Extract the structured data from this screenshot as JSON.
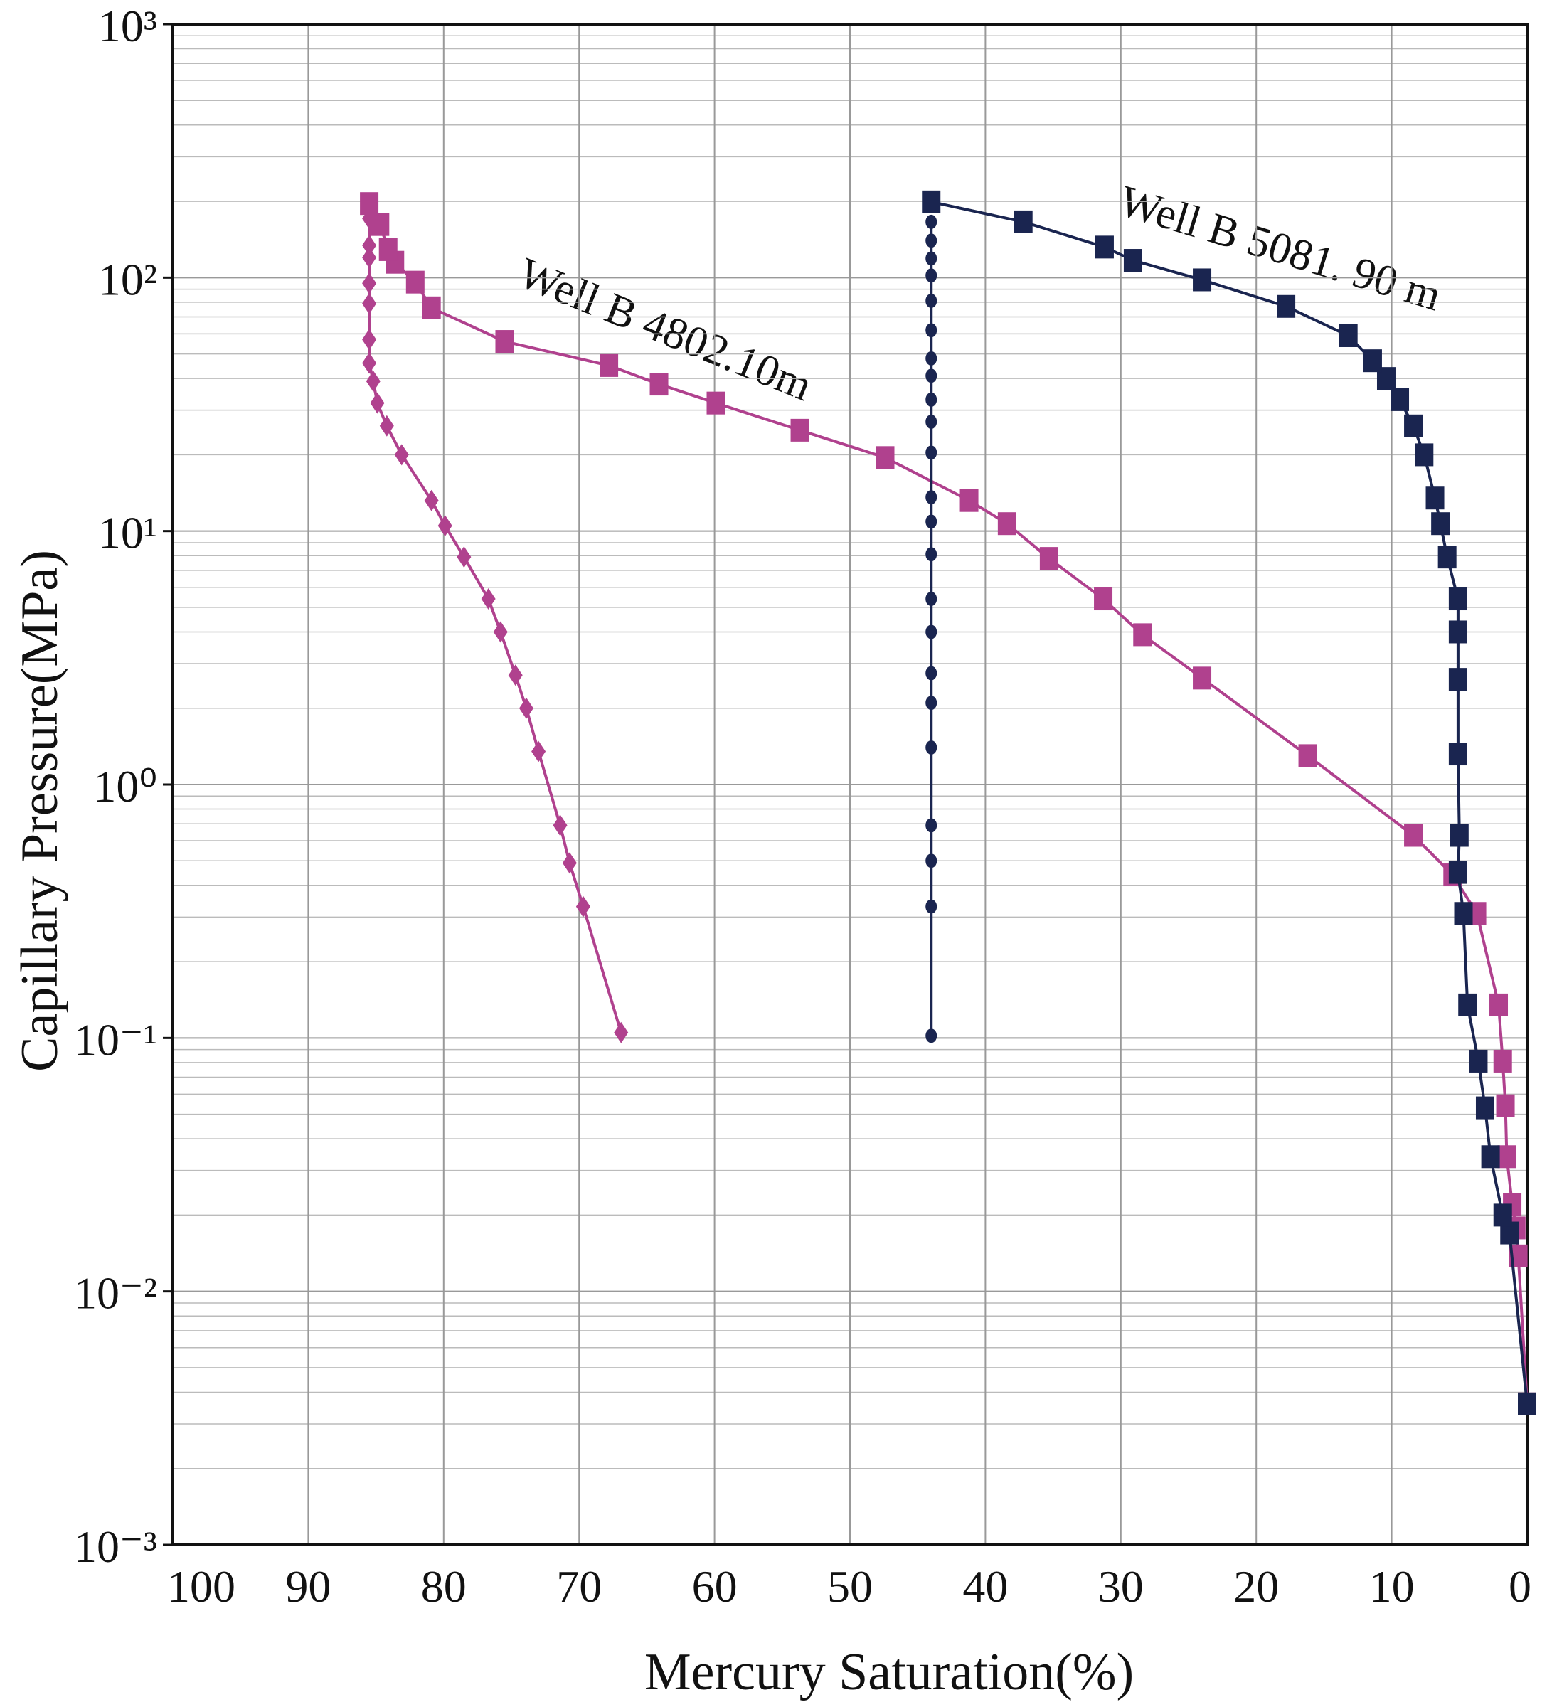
{
  "chart_data": {
    "type": "line",
    "xlabel": "Mercury Saturation(%)",
    "ylabel": "Capillary Pressure(MPa)",
    "xlim": [
      100,
      0
    ],
    "xticks": [
      100,
      90,
      80,
      70,
      60,
      50,
      40,
      30,
      20,
      10,
      0
    ],
    "yscale": "log",
    "ylim": [
      0.001,
      1000
    ],
    "yticks": [
      {
        "value": 1000,
        "label": "10³"
      },
      {
        "value": 100,
        "label": "10²"
      },
      {
        "value": 10,
        "label": "10¹"
      },
      {
        "value": 1,
        "label": "10⁰"
      },
      {
        "value": 0.1,
        "label": "10⁻¹"
      },
      {
        "value": 0.01,
        "label": "10⁻²"
      },
      {
        "value": 0.001,
        "label": "10⁻³"
      }
    ],
    "grid": true,
    "minor_grid": true,
    "series": [
      {
        "name": "Well B 4802.10m",
        "color": "#b0418e",
        "marker": "square",
        "x": [
          0,
          0.65,
          0.8,
          1.1,
          1.5,
          1.6,
          1.8,
          2.1,
          3.7,
          5.5,
          8.4,
          16.2,
          24.0,
          28.4,
          31.3,
          35.3,
          38.4,
          41.2,
          47.4,
          53.7,
          59.9,
          64.1,
          67.8,
          75.5,
          80.9,
          82.1,
          83.6,
          84.1,
          84.7,
          85.5
        ],
        "values": [
          0.0036,
          0.0138,
          0.0178,
          0.022,
          0.034,
          0.054,
          0.081,
          0.135,
          0.31,
          0.44,
          0.63,
          1.3,
          2.63,
          3.9,
          5.4,
          7.8,
          10.7,
          13.2,
          19.5,
          25,
          32,
          38,
          45,
          56,
          76,
          96,
          115,
          129,
          162,
          196
        ]
      },
      {
        "color": "#b0418e",
        "marker": "diamond",
        "x": [
          66.9,
          69.7,
          70.7,
          71.4,
          73.0,
          73.9,
          74.7,
          75.8,
          76.7,
          78.5,
          79.9,
          80.9,
          83.1,
          84.2,
          84.9,
          85.2,
          85.5,
          85.5,
          85.5,
          85.5,
          85.5,
          85.5,
          85.5
        ],
        "values": [
          0.105,
          0.33,
          0.49,
          0.69,
          1.35,
          2.0,
          2.7,
          4.0,
          5.4,
          7.9,
          10.5,
          13.2,
          20,
          26,
          32,
          39,
          46,
          57,
          79,
          95,
          120,
          134,
          171
        ]
      },
      {
        "name": "Well B 5081. 90 m",
        "color": "#1a2550",
        "marker": "square",
        "x": [
          0,
          1.3,
          1.8,
          2.7,
          3.1,
          3.6,
          4.4,
          4.7,
          5.1,
          5.0,
          5.1,
          5.1,
          5.1,
          5.1,
          5.9,
          6.4,
          6.8,
          7.6,
          8.4,
          9.4,
          10.4,
          11.4,
          13.2,
          17.8,
          24.0,
          29.1,
          31.2,
          37.2,
          44.0
        ],
        "values": [
          0.0036,
          0.017,
          0.02,
          0.034,
          0.053,
          0.081,
          0.135,
          0.31,
          0.45,
          0.63,
          1.32,
          2.6,
          4.0,
          5.4,
          7.9,
          10.7,
          13.5,
          20,
          26,
          33,
          40,
          47,
          59,
          77,
          98,
          117,
          132,
          166,
          199
        ]
      },
      {
        "color": "#1a2550",
        "marker": "circle",
        "x": [
          44.0,
          44.0,
          44.0,
          44.0,
          44.0,
          44.0,
          44.0,
          44.0,
          44.0,
          44.0,
          44.0,
          44.0,
          44.0,
          44.0,
          44.0,
          44.0,
          44.0,
          44.0,
          44.0,
          44.0,
          44.0,
          44.0,
          44.0
        ],
        "values": [
          0.102,
          0.33,
          0.5,
          0.69,
          1.4,
          2.1,
          2.75,
          4.0,
          5.4,
          8.1,
          10.9,
          13.6,
          20.4,
          27,
          33,
          41,
          48,
          62,
          81,
          102,
          119,
          140,
          166
        ]
      }
    ]
  }
}
